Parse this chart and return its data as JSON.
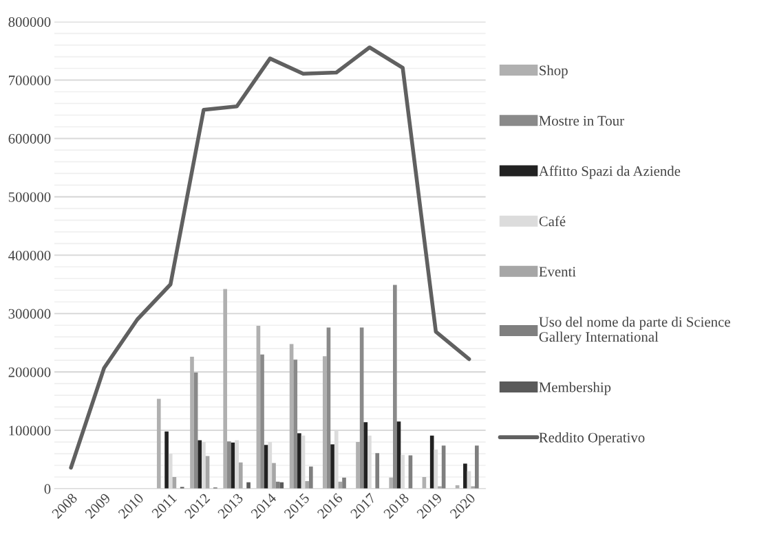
{
  "chart_data": {
    "type": "bar",
    "categories": [
      "2008",
      "2009",
      "2010",
      "2011",
      "2012",
      "2013",
      "2014",
      "2015",
      "2016",
      "2017",
      "2018",
      "2019",
      "2020"
    ],
    "series": [
      {
        "name": "Shop",
        "color": "#b0b0b0",
        "values": [
          null,
          null,
          null,
          154000,
          226000,
          342000,
          279000,
          248000,
          227000,
          80000,
          19000,
          20000,
          6000
        ]
      },
      {
        "name": "Mostre in Tour",
        "color": "#8a8a8a",
        "values": [
          null,
          null,
          null,
          0,
          199000,
          81000,
          230000,
          221000,
          276000,
          276000,
          349000,
          0,
          0
        ]
      },
      {
        "name": "Affitto Spazi da Aziende",
        "color": "#222222",
        "values": [
          null,
          null,
          null,
          98000,
          83000,
          79000,
          75000,
          95000,
          76000,
          114000,
          115000,
          91000,
          43000
        ]
      },
      {
        "name": "Café",
        "color": "#dcdcdc",
        "values": [
          null,
          null,
          null,
          60000,
          80000,
          83000,
          80000,
          91000,
          100000,
          91000,
          58000,
          67000,
          30000
        ]
      },
      {
        "name": "Eventi",
        "color": "#a6a6a6",
        "values": [
          null,
          null,
          null,
          20000,
          56000,
          45000,
          44000,
          13000,
          12000,
          0,
          0,
          4000,
          4000
        ]
      },
      {
        "name": "Uso del nome da parte di Science Gallery International",
        "color": "#7f7f7f",
        "values": [
          null,
          null,
          null,
          0,
          0,
          0,
          12000,
          38000,
          19000,
          61000,
          57000,
          74000,
          74000
        ]
      },
      {
        "name": "Membership",
        "color": "#5a5a5a",
        "values": [
          null,
          null,
          null,
          3000,
          2000,
          11000,
          11000,
          0,
          0,
          0,
          0,
          0,
          0
        ]
      },
      {
        "name": "Reddito Operativo",
        "type": "line",
        "color": "#606060",
        "values": [
          36000,
          207000,
          290000,
          350000,
          649000,
          655000,
          737000,
          711000,
          713000,
          756000,
          721000,
          269000,
          222000
        ]
      }
    ],
    "ylim": [
      0,
      800000
    ],
    "yticks": [
      0,
      {
        "value": 20000,
        "label": null
      },
      {
        "value": 40000,
        "label": null
      },
      {
        "value": 60000,
        "label": null
      },
      {
        "value": 80000,
        "label": null
      },
      100000,
      {
        "value": 120000,
        "label": null
      },
      {
        "value": 140000,
        "label": null
      },
      {
        "value": 160000,
        "label": null
      },
      {
        "value": 180000,
        "label": null
      },
      200000,
      {
        "value": 220000,
        "label": null
      },
      {
        "value": 240000,
        "label": null
      },
      {
        "value": 260000,
        "label": null
      },
      {
        "value": 280000,
        "label": null
      },
      300000,
      {
        "value": 320000,
        "label": null
      },
      {
        "value": 340000,
        "label": null
      },
      {
        "value": 360000,
        "label": null
      },
      {
        "value": 380000,
        "label": null
      },
      400000,
      {
        "value": 420000,
        "label": null
      },
      {
        "value": 440000,
        "label": null
      },
      {
        "value": 460000,
        "label": null
      },
      {
        "value": 480000,
        "label": null
      },
      500000,
      {
        "value": 520000,
        "label": null
      },
      {
        "value": 540000,
        "label": null
      },
      {
        "value": 560000,
        "label": null
      },
      {
        "value": 580000,
        "label": null
      },
      600000,
      {
        "value": 620000,
        "label": null
      },
      {
        "value": 640000,
        "label": null
      },
      {
        "value": 660000,
        "label": null
      },
      {
        "value": 680000,
        "label": null
      },
      700000,
      {
        "value": 720000,
        "label": null
      },
      {
        "value": 740000,
        "label": null
      },
      {
        "value": 760000,
        "label": null
      },
      {
        "value": 780000,
        "label": null
      },
      800000
    ],
    "grid": "y",
    "legend": "right",
    "marker": "none",
    "line_style": "solid"
  }
}
